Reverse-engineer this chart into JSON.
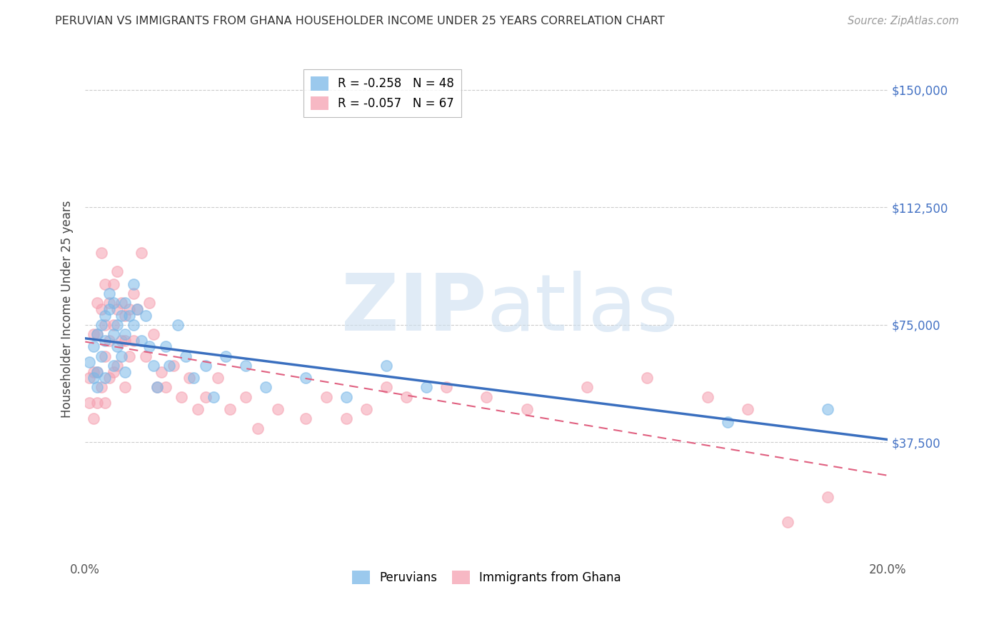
{
  "title": "PERUVIAN VS IMMIGRANTS FROM GHANA HOUSEHOLDER INCOME UNDER 25 YEARS CORRELATION CHART",
  "source": "Source: ZipAtlas.com",
  "ylabel": "Householder Income Under 25 years",
  "xlim": [
    0.0,
    0.2
  ],
  "ylim": [
    0,
    160000
  ],
  "yticks": [
    37500,
    75000,
    112500,
    150000
  ],
  "ytick_labels": [
    "$37,500",
    "$75,000",
    "$112,500",
    "$150,000"
  ],
  "background_color": "#ffffff",
  "grid_color": "#cccccc",
  "peruvian_color": "#7ab8e8",
  "ghana_color": "#f5a0b0",
  "peruvian_line_color": "#3a6fbf",
  "ghana_line_color": "#e06080",
  "legend_text_1": "R = -0.258   N = 48",
  "legend_text_2": "R = -0.057   N = 67",
  "watermark_zip": "ZIP",
  "watermark_atlas": "atlas",
  "peruvian_x": [
    0.001,
    0.002,
    0.002,
    0.003,
    0.003,
    0.003,
    0.004,
    0.004,
    0.005,
    0.005,
    0.005,
    0.006,
    0.006,
    0.007,
    0.007,
    0.007,
    0.008,
    0.008,
    0.009,
    0.009,
    0.01,
    0.01,
    0.01,
    0.011,
    0.012,
    0.012,
    0.013,
    0.014,
    0.015,
    0.016,
    0.017,
    0.018,
    0.02,
    0.021,
    0.023,
    0.025,
    0.027,
    0.03,
    0.032,
    0.035,
    0.04,
    0.045,
    0.055,
    0.065,
    0.075,
    0.085,
    0.16,
    0.185
  ],
  "peruvian_y": [
    63000,
    68000,
    58000,
    72000,
    60000,
    55000,
    75000,
    65000,
    78000,
    70000,
    58000,
    80000,
    85000,
    82000,
    72000,
    62000,
    75000,
    68000,
    78000,
    65000,
    82000,
    72000,
    60000,
    78000,
    88000,
    75000,
    80000,
    70000,
    78000,
    68000,
    62000,
    55000,
    68000,
    62000,
    75000,
    65000,
    58000,
    62000,
    52000,
    65000,
    62000,
    55000,
    58000,
    52000,
    62000,
    55000,
    44000,
    48000
  ],
  "ghana_x": [
    0.001,
    0.001,
    0.002,
    0.002,
    0.002,
    0.003,
    0.003,
    0.003,
    0.003,
    0.004,
    0.004,
    0.004,
    0.005,
    0.005,
    0.005,
    0.005,
    0.006,
    0.006,
    0.006,
    0.007,
    0.007,
    0.007,
    0.008,
    0.008,
    0.008,
    0.009,
    0.009,
    0.01,
    0.01,
    0.01,
    0.011,
    0.011,
    0.012,
    0.012,
    0.013,
    0.014,
    0.015,
    0.016,
    0.017,
    0.018,
    0.019,
    0.02,
    0.022,
    0.024,
    0.026,
    0.028,
    0.03,
    0.033,
    0.036,
    0.04,
    0.043,
    0.048,
    0.055,
    0.06,
    0.065,
    0.07,
    0.075,
    0.08,
    0.09,
    0.1,
    0.11,
    0.125,
    0.14,
    0.155,
    0.165,
    0.175,
    0.185
  ],
  "ghana_y": [
    58000,
    50000,
    72000,
    60000,
    45000,
    82000,
    72000,
    60000,
    50000,
    98000,
    80000,
    55000,
    88000,
    75000,
    65000,
    50000,
    82000,
    70000,
    58000,
    88000,
    75000,
    60000,
    92000,
    80000,
    62000,
    82000,
    70000,
    78000,
    70000,
    55000,
    80000,
    65000,
    85000,
    70000,
    80000,
    98000,
    65000,
    82000,
    72000,
    55000,
    60000,
    55000,
    62000,
    52000,
    58000,
    48000,
    52000,
    58000,
    48000,
    52000,
    42000,
    48000,
    45000,
    52000,
    45000,
    48000,
    55000,
    52000,
    55000,
    52000,
    48000,
    55000,
    58000,
    52000,
    48000,
    12000,
    20000
  ]
}
